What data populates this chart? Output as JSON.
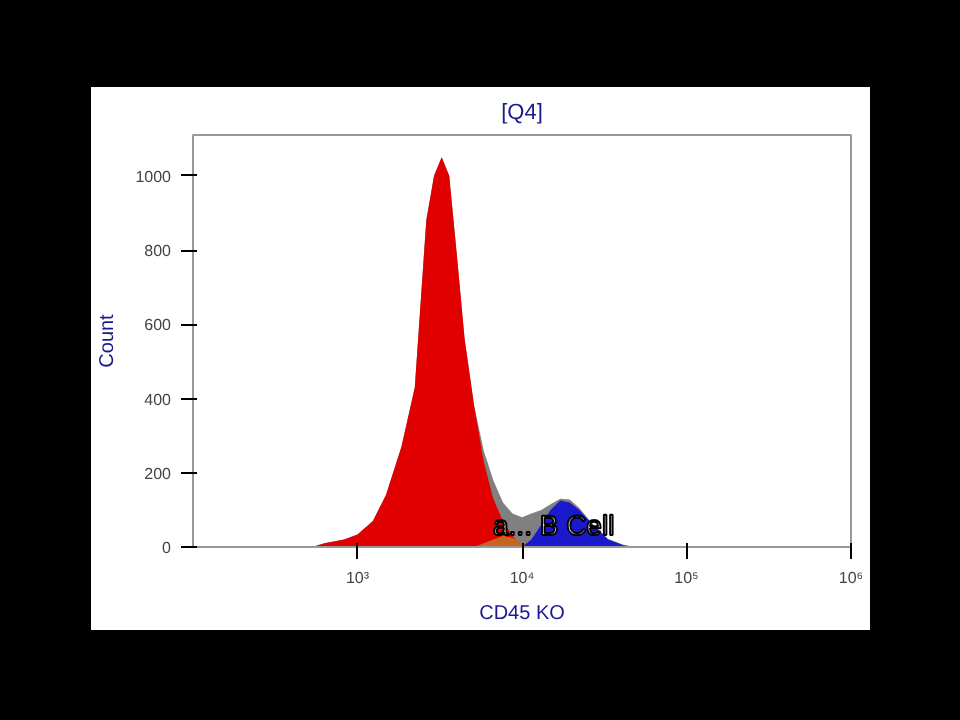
{
  "chart_data": {
    "type": "area",
    "title": "[Q4]",
    "xlabel": "CD45 KO",
    "ylabel": "Count",
    "log": "x",
    "xlim": [
      100,
      1000000
    ],
    "ylim": [
      0,
      1110
    ],
    "xticks": [
      {
        "value": 1000,
        "label": "10³"
      },
      {
        "value": 10000,
        "label": "10⁴"
      },
      {
        "value": 100000,
        "label": "10⁵"
      },
      {
        "value": 1000000,
        "label": "10⁶"
      }
    ],
    "yticks": [
      0,
      200,
      400,
      600,
      800,
      1000
    ],
    "grid": false,
    "annotations": [
      "a... B Cell"
    ],
    "series": [
      {
        "color": "#808080",
        "x": [
          530,
          630,
          830,
          1000,
          1240,
          1490,
          1850,
          2230,
          2620,
          2920,
          3250,
          3610,
          4030,
          4480,
          5120,
          5850,
          6690,
          7660,
          8750,
          10000,
          11400,
          13100,
          14900,
          17100,
          19500,
          22300,
          26900,
          33300,
          41300,
          48500
        ],
        "values": [
          0,
          10,
          20,
          34,
          70,
          140,
          270,
          430,
          880,
          1000,
          1050,
          1000,
          780,
          560,
          380,
          260,
          180,
          120,
          90,
          80,
          90,
          100,
          115,
          130,
          128,
          105,
          62,
          22,
          6,
          0
        ]
      },
      {
        "color": "#e00000",
        "x": [
          530,
          630,
          830,
          1000,
          1240,
          1490,
          1850,
          2230,
          2620,
          2920,
          3250,
          3610,
          4030,
          4480,
          5120,
          5850,
          6690,
          7660,
          8750,
          10000
        ],
        "values": [
          0,
          10,
          20,
          34,
          70,
          140,
          270,
          430,
          880,
          1000,
          1050,
          1000,
          780,
          560,
          380,
          230,
          130,
          70,
          30,
          0
        ]
      },
      {
        "color": "#c8641e",
        "x": [
          5120,
          5850,
          6690,
          7660,
          8750,
          10000,
          11400
        ],
        "values": [
          0,
          10,
          20,
          30,
          25,
          10,
          0
        ]
      },
      {
        "color": "#1a1acc",
        "x": [
          10000,
          11400,
          13100,
          14900,
          17100,
          19500,
          22300,
          26900,
          33300,
          41300,
          48500
        ],
        "values": [
          0,
          20,
          60,
          100,
          125,
          120,
          100,
          60,
          20,
          5,
          0
        ]
      }
    ]
  }
}
